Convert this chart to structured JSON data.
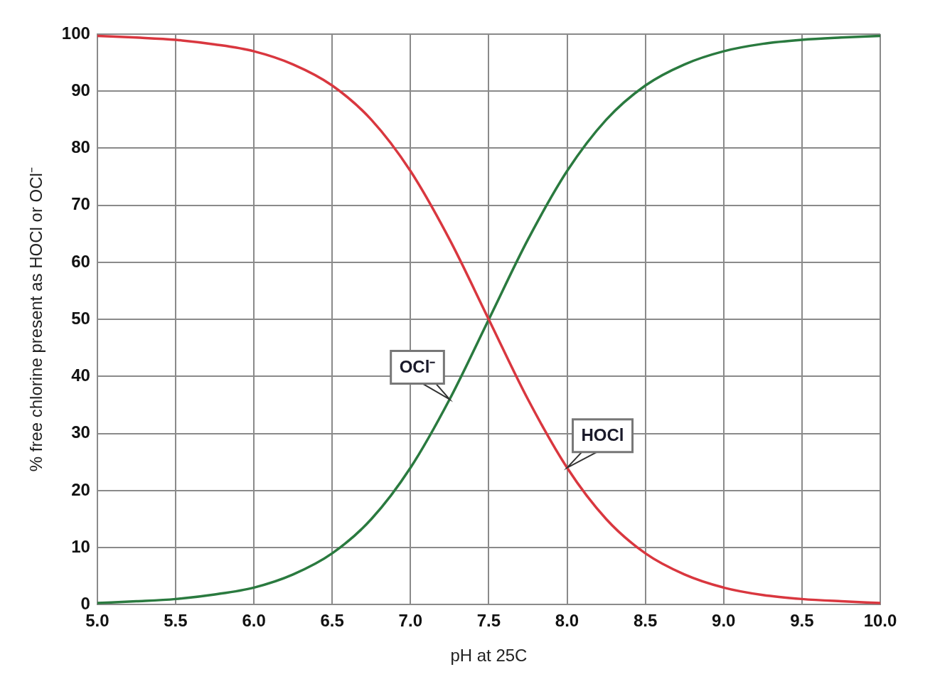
{
  "chart_data": {
    "type": "line",
    "xlabel": "pH at 25C",
    "ylabel": "% free chlorine present as HOCl or OCl⁻",
    "x": [
      5.0,
      5.25,
      5.5,
      5.75,
      6.0,
      6.25,
      6.5,
      6.75,
      7.0,
      7.25,
      7.5,
      7.75,
      8.0,
      8.25,
      8.5,
      8.75,
      9.0,
      9.25,
      9.5,
      9.75,
      10.0
    ],
    "series": [
      {
        "name": "HOCl",
        "color": "#d9373f",
        "values": [
          99.7,
          99.4,
          99.0,
          98.2,
          97.0,
          94.7,
          91.0,
          85.0,
          76.0,
          64.0,
          50.0,
          36.0,
          24.0,
          15.0,
          9.0,
          5.3,
          3.0,
          1.7,
          1.0,
          0.6,
          0.3
        ]
      },
      {
        "name": "OCl⁻",
        "color": "#2a7a3f",
        "values": [
          0.3,
          0.6,
          1.0,
          1.8,
          3.0,
          5.3,
          9.0,
          15.0,
          24.0,
          36.0,
          50.0,
          64.0,
          76.0,
          85.0,
          91.0,
          94.7,
          97.0,
          98.3,
          99.0,
          99.4,
          99.7
        ]
      }
    ],
    "xlim": [
      5.0,
      10.0
    ],
    "xticks": [
      {
        "value": 5,
        "label": "5.0"
      },
      5.5,
      {
        "value": 6,
        "label": "6.0"
      },
      6.5,
      {
        "value": 7,
        "label": "7.0"
      },
      7.5,
      {
        "value": 8,
        "label": "8.0"
      },
      8.5,
      {
        "value": 9,
        "label": "9.0"
      },
      9.5,
      {
        "value": 10,
        "label": "10.0"
      }
    ],
    "ylim": [
      0,
      100
    ],
    "yticks": [
      0,
      10,
      20,
      30,
      40,
      50,
      60,
      70,
      80,
      90,
      100
    ],
    "grid": true,
    "legend": false,
    "marker": "none",
    "line_style": "solid"
  }
}
